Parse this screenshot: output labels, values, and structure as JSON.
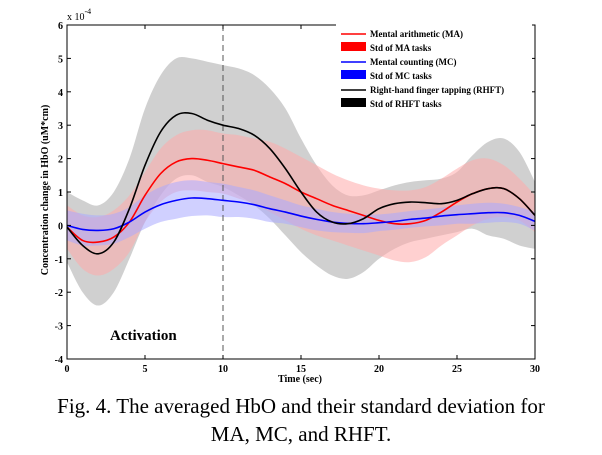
{
  "chart_data": {
    "type": "line",
    "title": "",
    "xlabel": "Time (sec)",
    "ylabel": "Concentration change in HbO (uM*cm)",
    "exponent_label": "x 10",
    "exponent_power": "-4",
    "xlim": [
      0,
      30
    ],
    "ylim": [
      -4,
      6
    ],
    "xticks": [
      0,
      5,
      10,
      15,
      20,
      25,
      30
    ],
    "yticks": [
      -4,
      -3,
      -2,
      -1,
      0,
      1,
      2,
      3,
      4,
      5,
      6
    ],
    "vline_x": 10,
    "annotation": "Activation",
    "legend_position": "top-right",
    "x": [
      0,
      1,
      2,
      3,
      4,
      5,
      6,
      7,
      8,
      9,
      10,
      11,
      12,
      13,
      14,
      15,
      16,
      17,
      18,
      19,
      20,
      21,
      22,
      23,
      24,
      25,
      26,
      27,
      28,
      29,
      30
    ],
    "series": [
      {
        "name": "Mental arithmetic (MA)",
        "std_name": "Std of MA tasks",
        "color": "#ff0000",
        "band_color": "#ffaaaa",
        "values": [
          -0.05,
          -0.45,
          -0.5,
          -0.35,
          0.1,
          0.9,
          1.55,
          1.9,
          2.0,
          1.95,
          1.85,
          1.75,
          1.65,
          1.45,
          1.25,
          1.0,
          0.8,
          0.6,
          0.45,
          0.3,
          0.15,
          0.05,
          0.05,
          0.15,
          0.4,
          0.7,
          0.95,
          1.1,
          1.1,
          0.8,
          0.3
        ],
        "upper": [
          0.6,
          0.3,
          0.25,
          0.45,
          0.9,
          1.6,
          2.3,
          2.7,
          2.85,
          2.85,
          2.75,
          2.7,
          2.6,
          2.5,
          2.3,
          2.05,
          1.8,
          1.55,
          1.35,
          1.2,
          1.1,
          1.05,
          1.05,
          1.15,
          1.4,
          1.7,
          1.95,
          2.0,
          1.8,
          1.4,
          0.9
        ],
        "lower": [
          -0.7,
          -1.3,
          -1.5,
          -1.3,
          -0.8,
          0.1,
          0.7,
          1.0,
          1.05,
          1.0,
          0.95,
          0.8,
          0.65,
          0.4,
          0.15,
          -0.1,
          -0.3,
          -0.45,
          -0.6,
          -0.75,
          -0.9,
          -1.05,
          -1.1,
          -0.95,
          -0.6,
          -0.3,
          0.0,
          0.2,
          0.25,
          0.15,
          -0.2
        ]
      },
      {
        "name": "Mental counting (MC)",
        "std_name": "Std of MC tasks",
        "color": "#0000ff",
        "band_color": "#aaaaff",
        "values": [
          0.0,
          -0.12,
          -0.15,
          -0.1,
          0.1,
          0.4,
          0.62,
          0.75,
          0.82,
          0.8,
          0.75,
          0.7,
          0.62,
          0.5,
          0.4,
          0.28,
          0.18,
          0.1,
          0.06,
          0.05,
          0.08,
          0.12,
          0.18,
          0.22,
          0.28,
          0.32,
          0.35,
          0.38,
          0.38,
          0.3,
          0.12
        ],
        "upper": [
          0.45,
          0.35,
          0.3,
          0.35,
          0.55,
          0.9,
          1.15,
          1.3,
          1.35,
          1.3,
          1.25,
          1.15,
          1.05,
          0.9,
          0.75,
          0.6,
          0.5,
          0.4,
          0.35,
          0.33,
          0.33,
          0.37,
          0.43,
          0.48,
          0.53,
          0.6,
          0.65,
          0.68,
          0.65,
          0.55,
          0.4
        ],
        "lower": [
          -0.45,
          -0.6,
          -0.6,
          -0.55,
          -0.35,
          -0.1,
          0.1,
          0.2,
          0.28,
          0.3,
          0.25,
          0.25,
          0.2,
          0.1,
          0.05,
          -0.05,
          -0.15,
          -0.2,
          -0.22,
          -0.23,
          -0.17,
          -0.13,
          -0.07,
          -0.03,
          0.0,
          0.05,
          0.05,
          0.08,
          0.1,
          0.05,
          -0.15
        ]
      },
      {
        "name": "Right-hand finger tapping (RHFT)",
        "std_name": "Std of RHFT tasks",
        "color": "#000000",
        "band_color": "#c8c8c8",
        "values": [
          -0.05,
          -0.6,
          -0.85,
          -0.5,
          0.5,
          1.8,
          2.8,
          3.3,
          3.35,
          3.15,
          3.0,
          2.9,
          2.7,
          2.3,
          1.7,
          1.0,
          0.4,
          0.1,
          0.05,
          0.2,
          0.5,
          0.65,
          0.7,
          0.68,
          0.65,
          0.75,
          0.95,
          1.1,
          1.1,
          0.8,
          0.3
        ],
        "upper": [
          1.0,
          0.75,
          0.6,
          1.0,
          2.0,
          3.5,
          4.5,
          5.0,
          5.0,
          4.9,
          4.8,
          4.7,
          4.5,
          4.1,
          3.5,
          2.6,
          1.8,
          1.2,
          0.9,
          0.9,
          1.05,
          1.2,
          1.3,
          1.35,
          1.4,
          1.6,
          2.1,
          2.5,
          2.6,
          2.2,
          1.3
        ],
        "lower": [
          -1.1,
          -2.0,
          -2.4,
          -2.0,
          -1.0,
          0.1,
          0.9,
          1.4,
          1.5,
          1.3,
          1.15,
          0.9,
          0.6,
          0.2,
          -0.3,
          -0.8,
          -1.2,
          -1.5,
          -1.6,
          -1.4,
          -1.0,
          -0.7,
          -0.5,
          -0.4,
          -0.3,
          -0.2,
          -0.1,
          -0.3,
          -0.4,
          -0.6,
          -0.7
        ]
      }
    ]
  },
  "caption": {
    "line1": "Fig. 4. The averaged HbO and their standard deviation for",
    "line2": "MA, MC, and RHFT."
  }
}
